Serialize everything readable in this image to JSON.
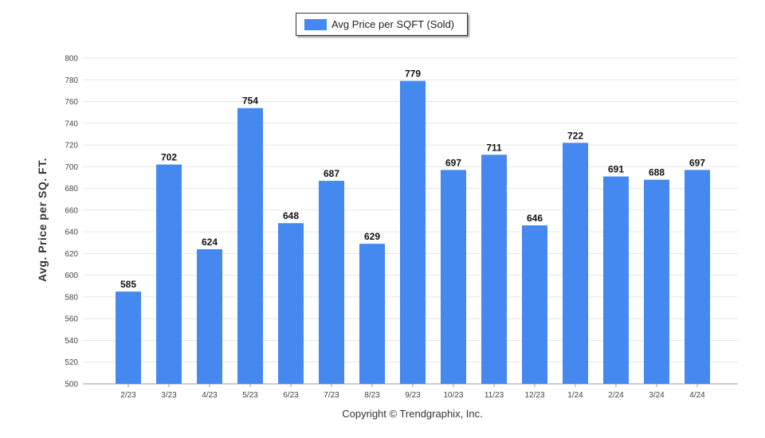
{
  "chart_data": {
    "type": "bar",
    "categories": [
      "2/23",
      "3/23",
      "4/23",
      "5/23",
      "6/23",
      "7/23",
      "8/23",
      "9/23",
      "10/23",
      "11/23",
      "12/23",
      "1/24",
      "2/24",
      "3/24",
      "4/24"
    ],
    "series": [
      {
        "name": "Avg Price per SQFT (Sold)",
        "values": [
          585,
          702,
          624,
          754,
          648,
          687,
          629,
          779,
          697,
          711,
          646,
          722,
          691,
          688,
          697
        ]
      }
    ],
    "ylabel": "Avg. Price per SQ. FT.",
    "ylim": [
      500,
      800
    ],
    "yticks": [
      500,
      520,
      540,
      560,
      580,
      600,
      620,
      640,
      660,
      680,
      700,
      720,
      740,
      760,
      780,
      800
    ],
    "grid": true,
    "legend_position": "top-center",
    "bar_color": "#4488f0",
    "data_labels": true
  },
  "footer": {
    "copyright": "Copyright © Trendgraphix, Inc."
  }
}
